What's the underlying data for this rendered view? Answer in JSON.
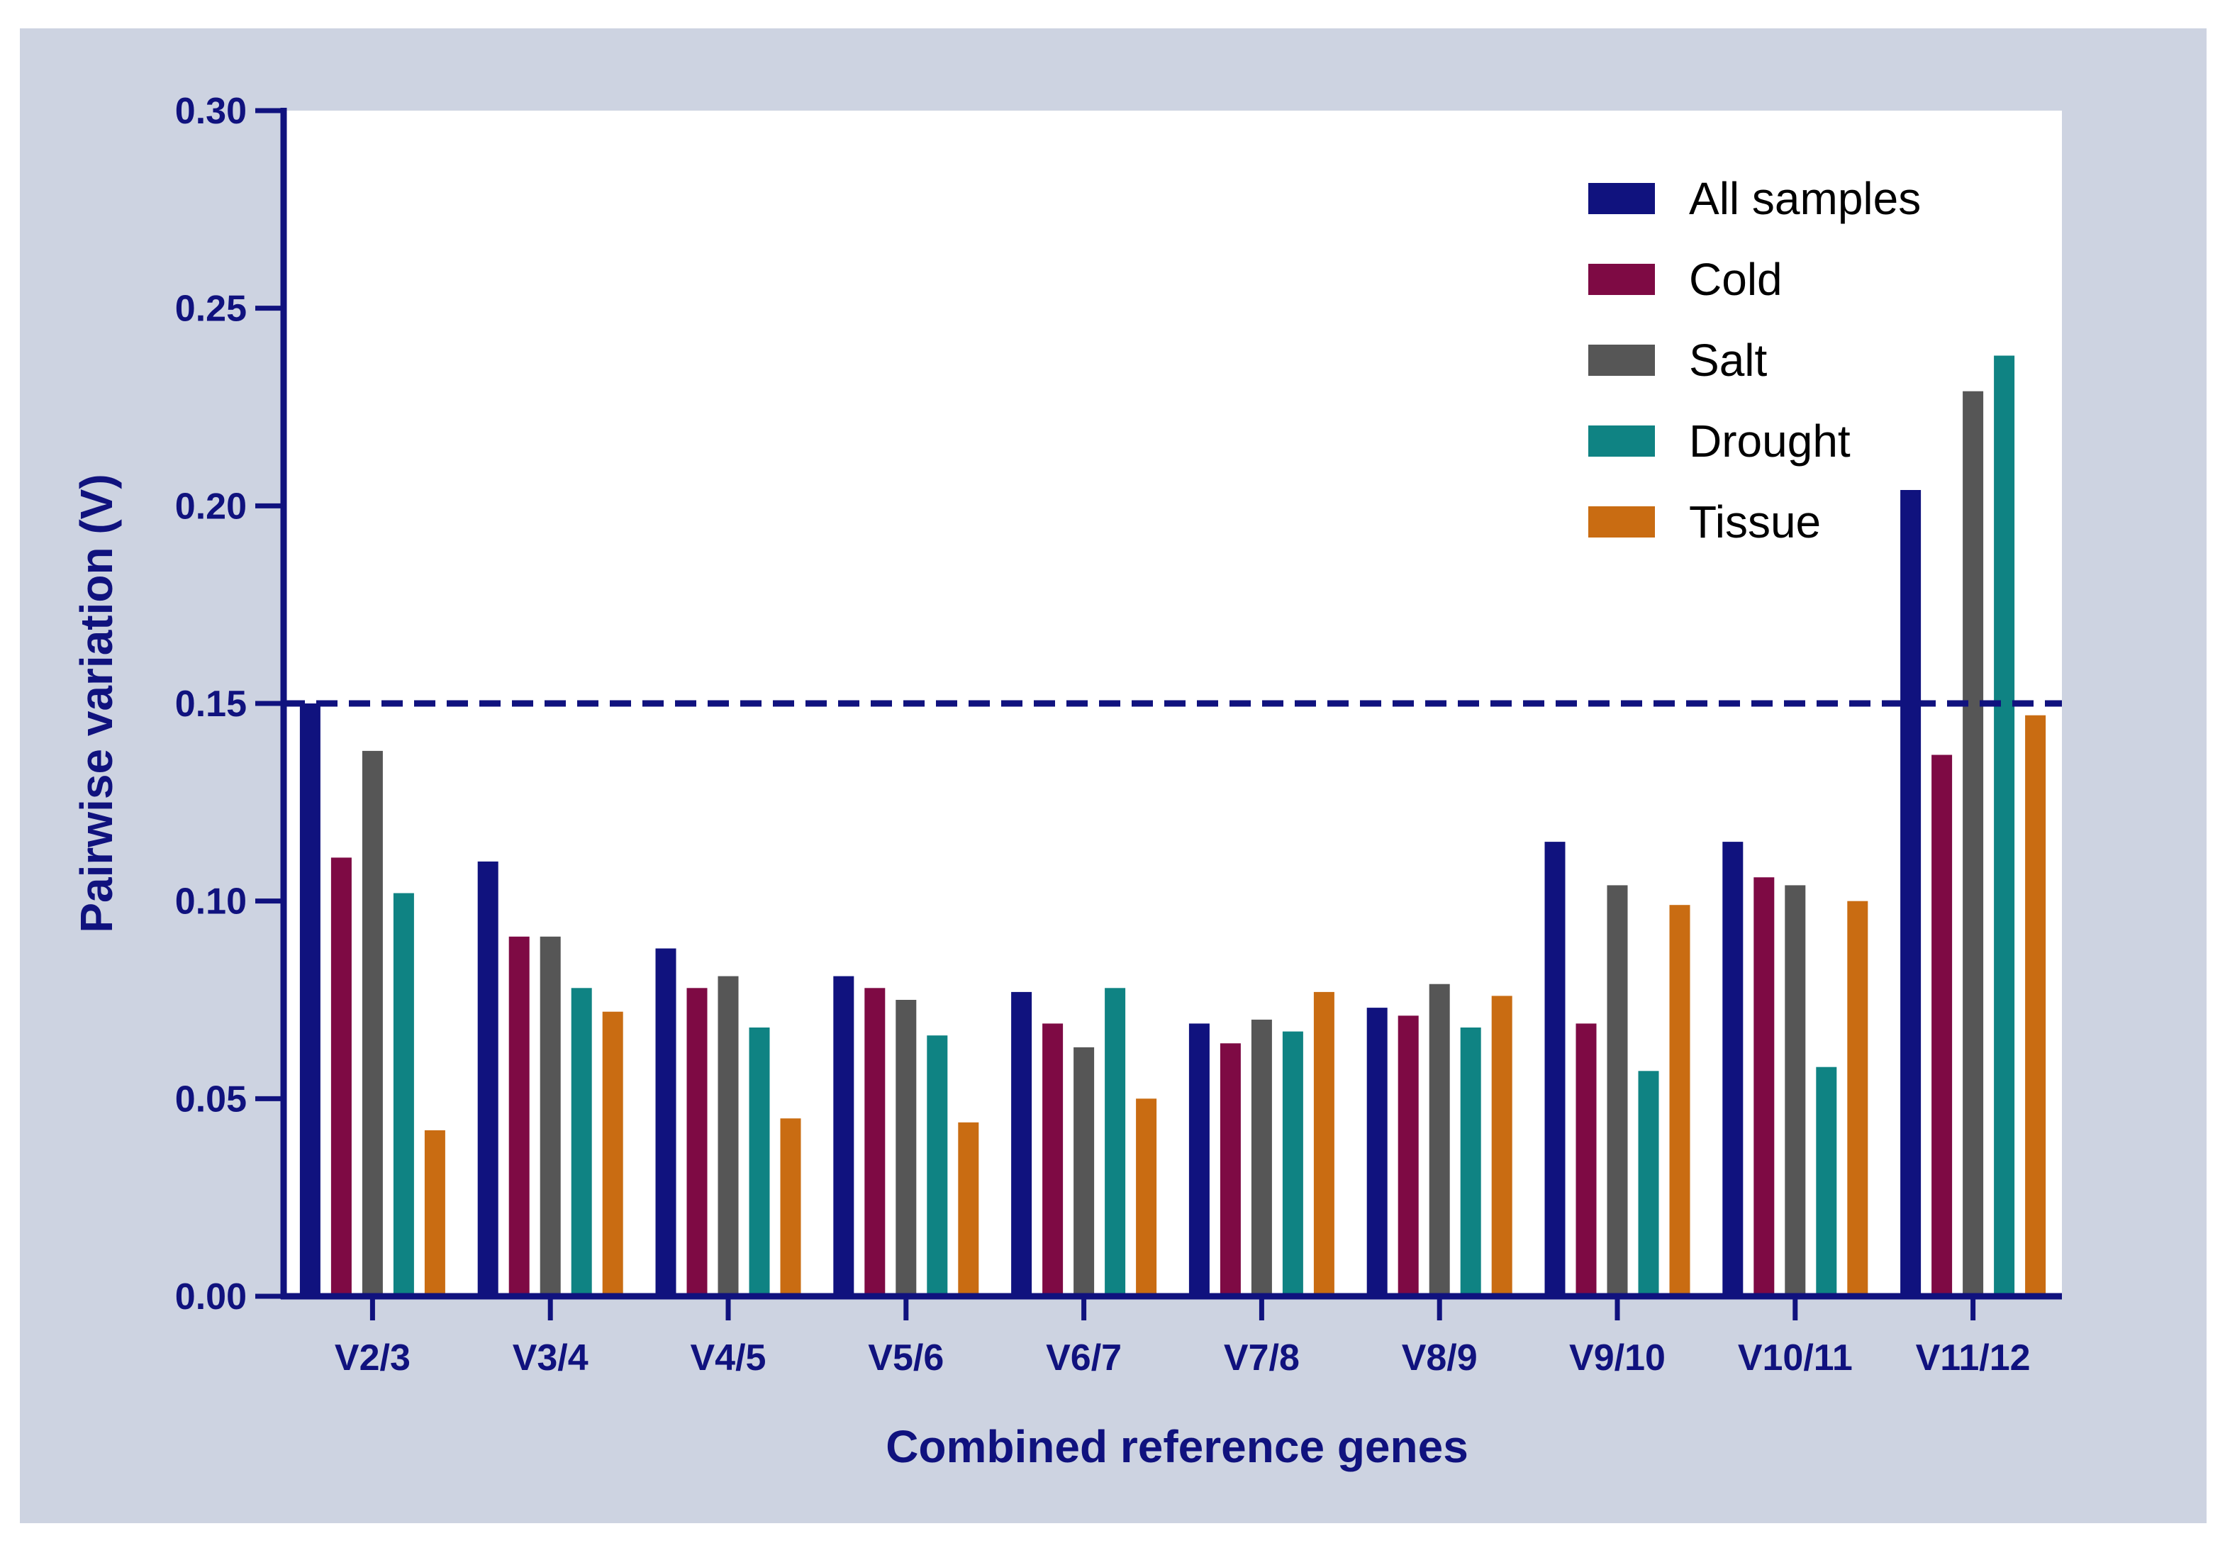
{
  "chart_data": {
    "type": "bar",
    "title": "",
    "xlabel": "Combined reference genes",
    "ylabel": "Pairwise variation (V)",
    "ylim": [
      0,
      0.3
    ],
    "y_ticks": [
      "0.00",
      "0.05",
      "0.10",
      "0.15",
      "0.20",
      "0.25",
      "0.30"
    ],
    "y_tick_values": [
      0,
      0.05,
      0.1,
      0.15,
      0.2,
      0.25,
      0.3
    ],
    "categories": [
      "V2/3",
      "V3/4",
      "V4/5",
      "V5/6",
      "V6/7",
      "V7/8",
      "V8/9",
      "V9/10",
      "V10/11",
      "V11/12"
    ],
    "threshold": 0.15,
    "legend_position": "top-right",
    "grid": false,
    "series": [
      {
        "name": "All samples",
        "color": "#10127e",
        "values": [
          0.15,
          0.11,
          0.088,
          0.081,
          0.077,
          0.069,
          0.073,
          0.115,
          0.115,
          0.204
        ]
      },
      {
        "name": "Cold",
        "color": "#7e0a44",
        "values": [
          0.111,
          0.091,
          0.078,
          0.078,
          0.069,
          0.064,
          0.071,
          0.069,
          0.106,
          0.137
        ]
      },
      {
        "name": "Salt",
        "color": "#565656",
        "values": [
          0.138,
          0.091,
          0.081,
          0.075,
          0.063,
          0.07,
          0.079,
          0.104,
          0.104,
          0.229
        ]
      },
      {
        "name": "Drought",
        "color": "#0f8383",
        "values": [
          0.102,
          0.078,
          0.068,
          0.066,
          0.078,
          0.067,
          0.068,
          0.057,
          0.058,
          0.238
        ]
      },
      {
        "name": "Tissue",
        "color": "#c96c12",
        "values": [
          0.042,
          0.072,
          0.045,
          0.044,
          0.05,
          0.077,
          0.076,
          0.099,
          0.1,
          0.147
        ]
      }
    ]
  }
}
